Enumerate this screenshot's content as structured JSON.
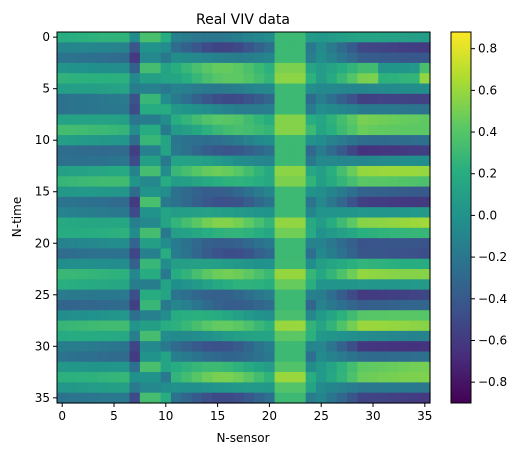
{
  "chart_data": {
    "type": "heatmap",
    "title": "Real VIV data",
    "xlabel": "N-sensor",
    "ylabel": "N-time",
    "n_cols": 36,
    "n_rows": 36,
    "xlim": [
      -0.5,
      35.5
    ],
    "ylim": [
      35.5,
      -0.5
    ],
    "xticks": [
      0,
      5,
      10,
      15,
      20,
      25,
      30,
      35
    ],
    "yticks": [
      0,
      5,
      10,
      15,
      20,
      25,
      30,
      35
    ],
    "colormap": "viridis",
    "vmin": -0.9,
    "vmax": 0.88,
    "colorbar_ticks": [
      0.8,
      0.6,
      0.4,
      0.2,
      0.0,
      -0.2,
      -0.4,
      -0.6,
      -0.8
    ],
    "colorbar_tick_labels": [
      "0.8",
      "0.6",
      "0.4",
      "0.2",
      "0.0",
      "−0.2",
      "−0.4",
      "−0.6",
      "−0.8"
    ]
  }
}
